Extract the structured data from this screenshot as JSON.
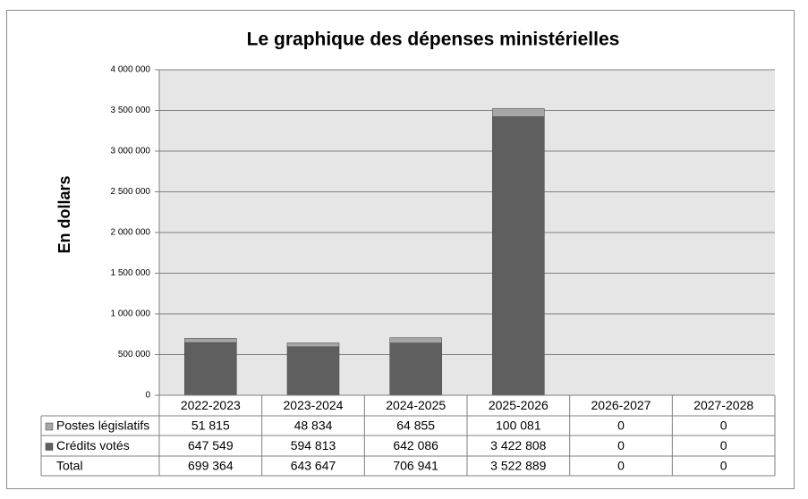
{
  "chart_data": {
    "type": "stacked-bar",
    "title": "Le graphique des dépenses ministérielles",
    "y_label": "En dollars",
    "categories": [
      "2022-2023",
      "2023-2024",
      "2024-2025",
      "2025-2026",
      "2026-2027",
      "2027-2028"
    ],
    "series": [
      {
        "name": "Postes législatifs",
        "color": "#a6a6a6",
        "values": [
          51815,
          48834,
          64855,
          100081,
          0,
          0
        ],
        "value_labels": [
          "51 815",
          "48 834",
          "64 855",
          "100 081",
          "0",
          "0"
        ]
      },
      {
        "name": "Crédits votés",
        "color": "#5f5f5f",
        "values": [
          647549,
          594813,
          642086,
          3422808,
          0,
          0
        ],
        "value_labels": [
          "647 549",
          "594 813",
          "642 086",
          "3 422 808",
          "0",
          "0"
        ]
      }
    ],
    "total": {
      "name": "Total",
      "values": [
        699364,
        643647,
        706941,
        3522889,
        0,
        0
      ],
      "value_labels": [
        "699 364",
        "643 647",
        "706 941",
        "3 522 889",
        "0",
        "0"
      ]
    },
    "ylim": [
      0,
      4000000
    ],
    "yticks": [
      0,
      {
        "value": 500000,
        "label": "500 000"
      },
      {
        "value": 1000000,
        "label": "1 000 000"
      },
      {
        "value": 1500000,
        "label": "1 500 000"
      },
      {
        "value": 2000000,
        "label": "2 000 000"
      },
      {
        "value": 2500000,
        "label": "2 500 000"
      },
      {
        "value": 3000000,
        "label": "3 000 000"
      },
      {
        "value": 3500000,
        "label": "3 500 000"
      },
      {
        "value": 4000000,
        "label": "4 000 000"
      }
    ],
    "grid": true,
    "plot_background": "#e6e6e6"
  }
}
